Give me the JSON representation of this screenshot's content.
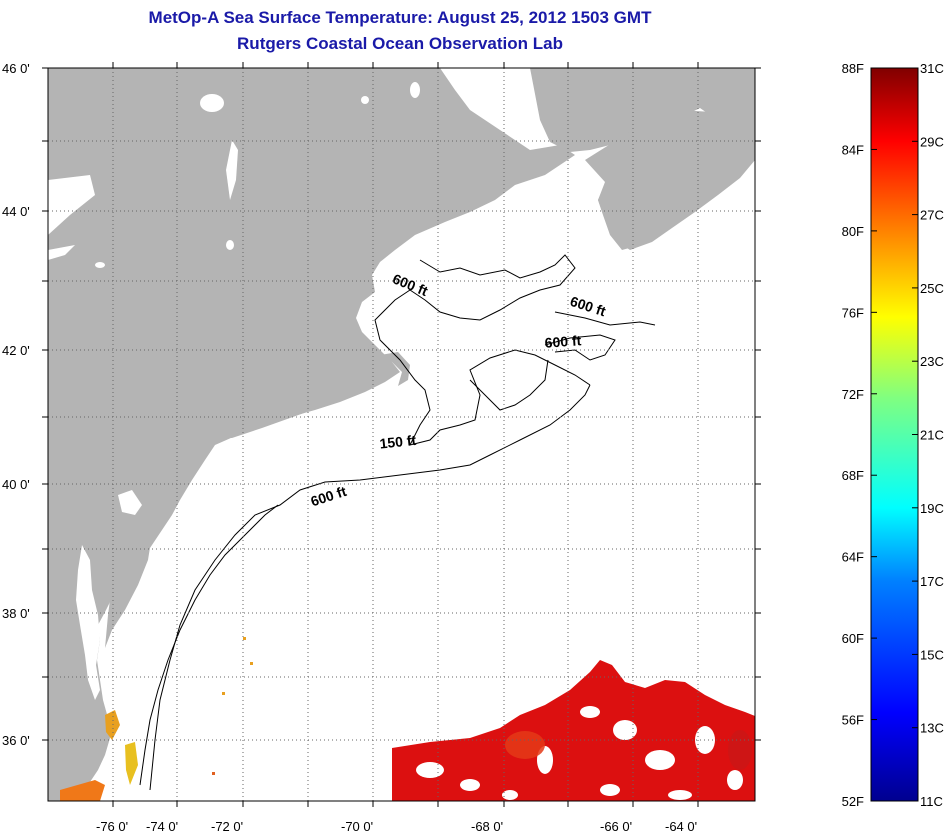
{
  "title": "MetOp-A Sea Surface Temperature:  August 25, 2012 1503 GMT",
  "subtitle": "Rutgers Coastal Ocean Observation Lab",
  "map": {
    "lat_labels": [
      "46 0'",
      "44 0'",
      "42 0'",
      "40 0'",
      "38 0'",
      "36 0'"
    ],
    "lon_labels": [
      "-76 0'",
      "-74 0'",
      "-72 0'",
      "-70 0'",
      "-68 0'",
      "-66 0'",
      "-64 0'"
    ],
    "contour_labels": [
      "600 ft",
      "600 ft",
      "600 ft",
      "150 ft",
      "600 ft"
    ],
    "land_color": "#b4b4b4",
    "ocean_color": "#ffffff",
    "sst_color": "#dc1010"
  },
  "colorbar": {
    "fahrenheit_labels": [
      "88F",
      "84F",
      "80F",
      "76F",
      "72F",
      "68F",
      "64F",
      "60F",
      "56F",
      "52F"
    ],
    "celsius_labels": [
      "31C",
      "29C",
      "27C",
      "25C",
      "23C",
      "21C",
      "19C",
      "17C",
      "15C",
      "13C",
      "11C"
    ]
  }
}
